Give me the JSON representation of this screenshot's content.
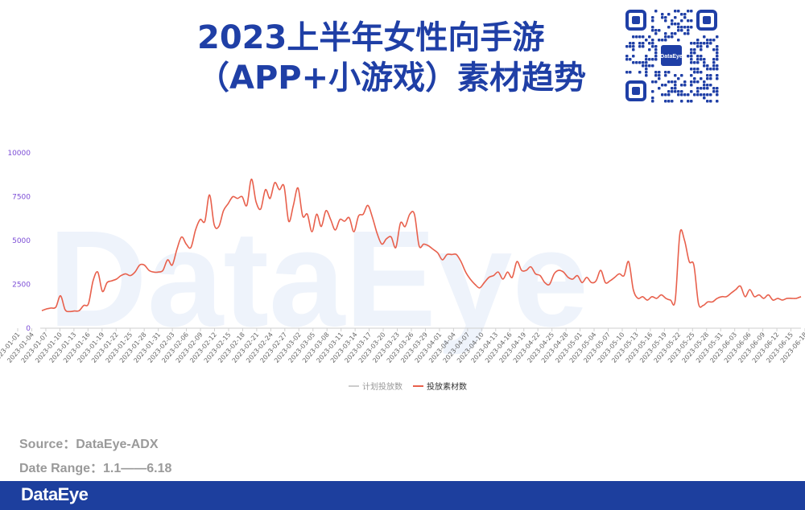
{
  "title": {
    "line1": "2023上半年女性向手游",
    "line2": "（APP+小游戏）素材趋势"
  },
  "qr_badge": "DataEye",
  "watermark": "DataEye",
  "source": "Source：DataEye-ADX",
  "date_range": "Date Range：1.1——6.18",
  "footer_logo": "DataEye",
  "colors": {
    "title": "#1f3fa6",
    "series_materials": "#e8604c",
    "series_plan": "#cccccc",
    "footer": "#1d3f9e"
  },
  "chart_data": {
    "type": "line",
    "ylim": [
      0,
      10000
    ],
    "yticks": [
      0,
      2500,
      5000,
      7500,
      10000
    ],
    "x_labels": [
      "2023-01-01",
      "2023-01-04",
      "2023-01-07",
      "2023-01-10",
      "2023-01-13",
      "2023-01-16",
      "2023-01-19",
      "2023-01-22",
      "2023-01-25",
      "2023-01-28",
      "2023-01-31",
      "2023-02-03",
      "2023-02-06",
      "2023-02-09",
      "2023-02-12",
      "2023-02-15",
      "2023-02-18",
      "2023-02-21",
      "2023-02-24",
      "2023-02-27",
      "2023-03-02",
      "2023-03-05",
      "2023-03-08",
      "2023-03-11",
      "2023-03-14",
      "2023-03-17",
      "2023-03-20",
      "2023-03-23",
      "2023-03-26",
      "2023-03-29",
      "2023-04-01",
      "2023-04-04",
      "2023-04-07",
      "2023-04-10",
      "2023-04-13",
      "2023-04-16",
      "2023-04-19",
      "2023-04-22",
      "2023-04-25",
      "2023-04-28",
      "2023-05-01",
      "2023-05-04",
      "2023-05-07",
      "2023-05-10",
      "2023-05-13",
      "2023-05-16",
      "2023-05-19",
      "2023-05-22",
      "2023-05-25",
      "2023-05-28",
      "2023-05-31",
      "2023-06-03",
      "2023-06-06",
      "2023-06-09",
      "2023-06-12",
      "2023-06-15",
      "2023-06-18"
    ],
    "legend": [
      "计划投放数",
      "投放素材数"
    ],
    "legend_position": "bottom-center",
    "grid": false,
    "series": [
      {
        "name": "投放素材数",
        "values": [
          1000,
          1100,
          1150,
          1200,
          1850,
          1050,
          950,
          980,
          1000,
          1300,
          1400,
          2700,
          3200,
          2100,
          2600,
          2700,
          2800,
          3000,
          3100,
          3000,
          3200,
          3600,
          3600,
          3300,
          3200,
          3200,
          3300,
          3900,
          3600,
          4500,
          5200,
          4800,
          4600,
          5600,
          6200,
          6100,
          7600,
          5900,
          5800,
          6700,
          7100,
          7500,
          7400,
          7500,
          7000,
          8500,
          7200,
          6800,
          7900,
          7400,
          8300,
          7900,
          8100,
          6100,
          7000,
          8000,
          6400,
          6500,
          5500,
          6500,
          5800,
          6700,
          6200,
          5600,
          6200,
          6100,
          6300,
          5500,
          6400,
          6500,
          7000,
          6300,
          5400,
          4800,
          5100,
          5200,
          4600,
          6000,
          5800,
          6500,
          6500,
          4700,
          4800,
          4700,
          4500,
          4300,
          3900,
          4200,
          4200,
          4200,
          3800,
          3200,
          2800,
          2500,
          2300,
          2600,
          2900,
          3000,
          3200,
          2800,
          3200,
          2900,
          3800,
          3300,
          3300,
          3500,
          3100,
          3000,
          2600,
          2500,
          3100,
          3300,
          3200,
          2900,
          2800,
          3000,
          2600,
          2900,
          2600,
          2700,
          3300,
          2600,
          2700,
          2900,
          3100,
          3000,
          3800,
          2200,
          1700,
          1800,
          1600,
          1800,
          1700,
          1900,
          1700,
          1600,
          1600,
          5400,
          5000,
          3800,
          3600,
          1400,
          1300,
          1500,
          1500,
          1700,
          1800,
          1800,
          2000,
          2200,
          2400,
          1800,
          2200,
          1800,
          1900,
          1700,
          1900,
          1600,
          1700,
          1600,
          1700,
          1700,
          1700,
          1800
        ]
      },
      {
        "name": "计划投放数",
        "values": []
      }
    ]
  }
}
